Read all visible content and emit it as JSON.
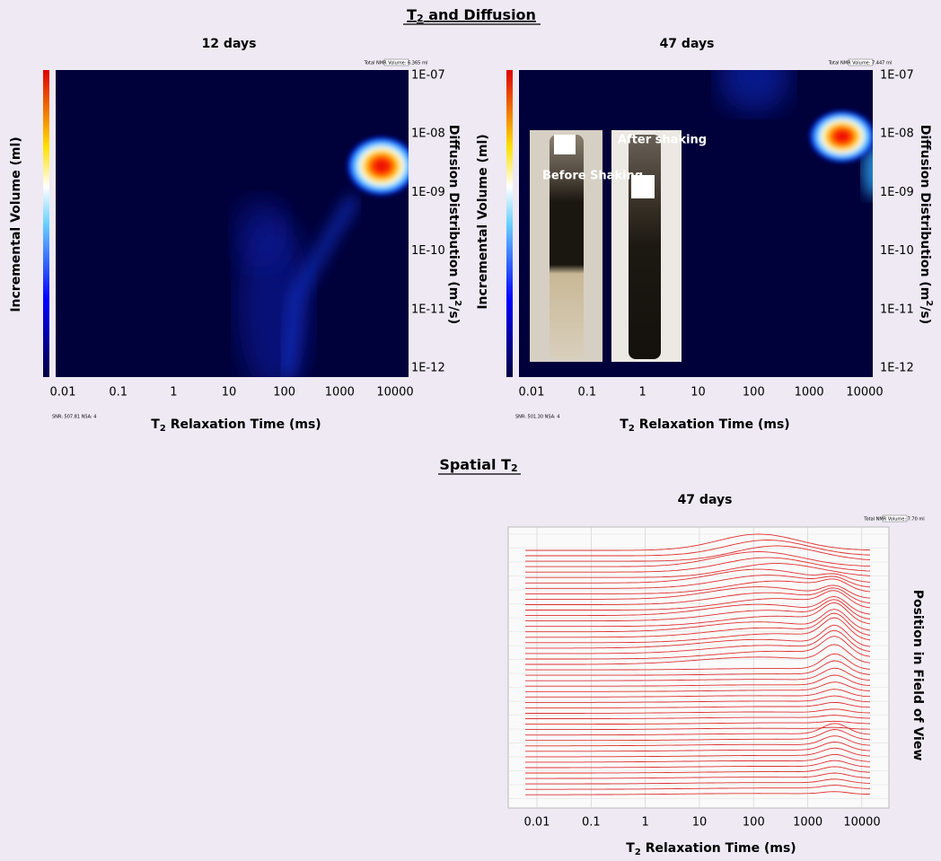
{
  "sections": [
    {
      "title": {
        "main": "T",
        "sub": "2",
        "rest": " and Diffusion"
      }
    },
    {
      "title": {
        "main": "Spatial T",
        "sub": "2"
      }
    }
  ],
  "panels": [
    {
      "title": "12 days",
      "total_volume": "Total NMR Volume: 6.365 ml",
      "snr": "SNR: 507.81 NSA: 4",
      "y_label": "Incremental Volume (ml)",
      "y2_label": {
        "main": "Diffusion Distribution (m",
        "sup": "2",
        "rest": "/s)"
      },
      "x_label": {
        "main": "T",
        "sub": "2",
        "rest": "  Relaxation Time (ms)"
      },
      "x_ticks": [
        "0.01",
        "0.1",
        "1",
        "10",
        "100",
        "1000",
        "10000"
      ],
      "y2_ticks": [
        "1E-07",
        "1E-08",
        "1E-09",
        "1E-10",
        "1E-11",
        "1E-12"
      ]
    },
    {
      "title": "47 days",
      "total_volume": "Total NMR Volume: 7.447 ml",
      "snr": "SNR: 501.30 NSA: 4",
      "y_label": "Incremental Volume (ml)",
      "y2_label": {
        "main": "Diffusion Distribution (m",
        "sup": "2",
        "rest": "/s)"
      },
      "x_label": {
        "main": "T",
        "sub": "2",
        "rest": "  Relaxation Time (ms)"
      },
      "x_ticks": [
        "0.01",
        "0.1",
        "1",
        "10",
        "100",
        "1000",
        "10000"
      ],
      "y2_ticks": [
        "1E-07",
        "1E-08",
        "1E-09",
        "1E-10",
        "1E-11",
        "1E-12"
      ],
      "photos": [
        "Before Shaking",
        "After shaking"
      ]
    },
    {
      "title": "47 days",
      "total_volume": "Total NMR Volume: 7.70 ml",
      "y_label": "Position in Field of View",
      "x_label": {
        "main": "T",
        "sub": "2",
        "rest": "  Relaxation Time (ms)"
      },
      "x_ticks": [
        "0.01",
        "0.1",
        "1",
        "10",
        "100",
        "1000",
        "10000"
      ]
    }
  ]
}
